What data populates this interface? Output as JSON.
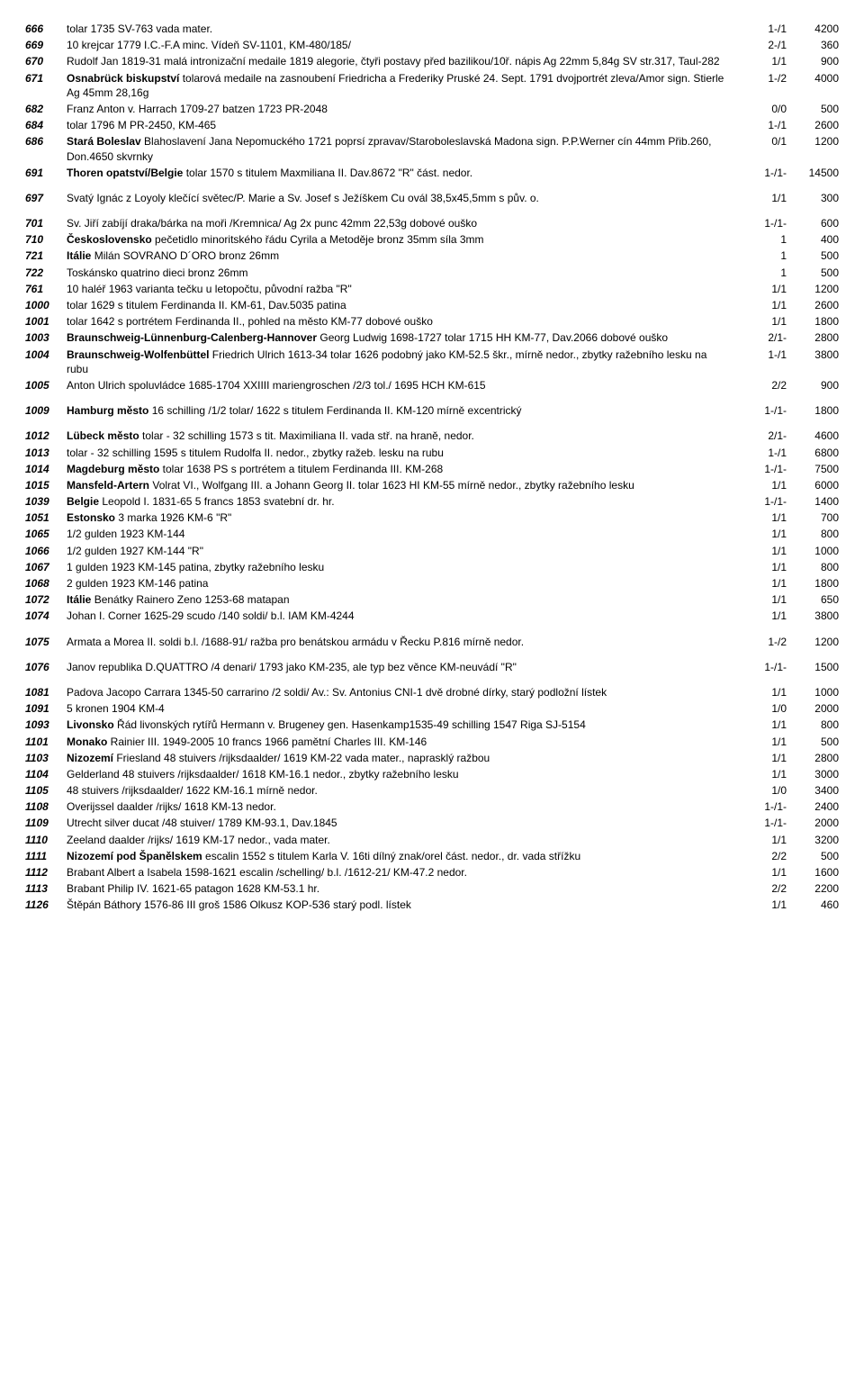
{
  "rows": [
    {
      "lot": "666",
      "desc": "tolar 1735  SV-763  vada mater.",
      "grade": "1-/1",
      "price": "4200"
    },
    {
      "lot": "669",
      "desc": "10 krejcar 1779 I.C.-F.A minc.  Vídeň  SV-1101, KM-480/185/",
      "grade": "2-/1",
      "price": "360"
    },
    {
      "lot": "670",
      "desc": "Rudolf Jan 1819-31 malá intronizační medaile 1819 alegorie, čtyři postavy před bazilikou/10ř. nápis  Ag 22mm  5,84g  SV str.317, Taul-282",
      "grade": "1/1",
      "price": "900"
    },
    {
      "lot": "671",
      "desc": "Osnabrück biskupství tolarová medaile na zasnoubení Friedricha a Frederiky Pruské 24. Sept. 1791 dvojportrét zleva/Amor  sign. Stierle  Ag 45mm  28,16g",
      "grade": "1-/2",
      "price": "4000",
      "bold": "Osnabrück biskupství"
    },
    {
      "lot": "682",
      "desc": "Franz Anton v. Harrach 1709-27  batzen 1723  PR-2048",
      "grade": "0/0",
      "price": "500"
    },
    {
      "lot": "684",
      "desc": "tolar 1796 M  PR-2450, KM-465",
      "grade": "1-/1",
      "price": "2600"
    },
    {
      "lot": "686",
      "desc": "Stará Boleslav Blahoslavení Jana Nepomuckého 1721 poprsí zpravav/Staroboleslavská Madona  sign. P.P.Werner  cín 44mm  Přib.260, Don.4650  skvrnky",
      "grade": "0/1",
      "price": "1200",
      "bold": "Stará Boleslav"
    },
    {
      "lot": "691",
      "desc": "Thoren opatství/Belgie tolar 1570 s titulem Maxmiliana II.  Dav.8672  \"R\"  část. nedor.",
      "grade": "1-/1-",
      "price": "14500",
      "bold": "Thoren opatství/Belgie"
    },
    {
      "gap": true
    },
    {
      "lot": "697",
      "desc": "Svatý Ignác z Loyoly  klečící světec/P. Marie a Sv. Josef s Ježíškem  Cu ovál 38,5x45,5mm s pův. o.",
      "grade": "1/1",
      "price": "300"
    },
    {
      "gap": true
    },
    {
      "lot": "701",
      "desc": "Sv. Jiří zabíjí draka/bárka na moři /Kremnica/  Ag 2x punc  42mm  22,53g  dobové ouško",
      "grade": "1-/1-",
      "price": "600"
    },
    {
      "lot": "710",
      "desc": "Československo pečetidlo minoritského řádu Cyrila a Metoděje  bronz 35mm síla 3mm",
      "grade": "1",
      "price": "400",
      "bold": "Československo"
    },
    {
      "lot": "721",
      "desc": "Itálie Milán SOVRANO D´ORO  bronz 26mm",
      "grade": "1",
      "price": "500",
      "bold": "Itálie"
    },
    {
      "lot": "722",
      "desc": "Toskánsko  quatrino dieci  bronz 26mm",
      "grade": "1",
      "price": "500"
    },
    {
      "lot": "761",
      "desc": "10 haléř 1963  varianta tečku u letopočtu, původní ražba  \"R\"",
      "grade": "1/1",
      "price": "1200"
    },
    {
      "lot": "1000",
      "desc": "tolar 1629 s titulem Ferdinanda II.  KM-61, Dav.5035  patina",
      "grade": "1/1",
      "price": "2600"
    },
    {
      "lot": "1001",
      "desc": "tolar 1642 s portrétem Ferdinanda II., pohled na město  KM-77  dobové ouško",
      "grade": "1/1",
      "price": "1800"
    },
    {
      "lot": "1003",
      "desc": "Braunschweig-Lünnenburg-Calenberg-Hannover Georg Ludwig 1698-1727 tolar 1715 HH  KM-77, Dav.2066  dobové ouško",
      "grade": "2/1-",
      "price": "2800",
      "bold": "Braunschweig-Lünnenburg-Calenberg-Hannover"
    },
    {
      "lot": "1004",
      "desc": "Braunschweig-Wolfenbüttel Friedrich Ulrich 1613-34  tolar 1626 podobný jako KM-52.5  škr., mírně nedor., zbytky ražebního lesku na rubu",
      "grade": "1-/1",
      "price": "3800",
      "bold": "Braunschweig-Wolfenbüttel"
    },
    {
      "lot": "1005",
      "desc": "Anton Ulrich spoluvládce 1685-1704  XXIIII mariengroschen /2/3 tol./ 1695  HCH  KM-615",
      "grade": "2/2",
      "price": "900"
    },
    {
      "gap": true
    },
    {
      "lot": "1009",
      "desc": "Hamburg město 16 schilling /1/2 tolar/ 1622 s titulem Ferdinanda II.  KM-120  mírně excentrický",
      "grade": "1-/1-",
      "price": "1800",
      "bold": "Hamburg město"
    },
    {
      "gap": true
    },
    {
      "lot": "1012",
      "desc": "Lübeck město tolar - 32 schilling 1573 s tit. Maximiliana II.  vada stř. na hraně, nedor.",
      "grade": "2/1-",
      "price": "4600",
      "bold": "Lübeck město"
    },
    {
      "lot": "1013",
      "desc": "tolar - 32 schilling 1595 s titulem Rudolfa II.  nedor., zbytky ražeb. lesku na rubu",
      "grade": "1-/1",
      "price": "6800"
    },
    {
      "lot": "1014",
      "desc": "Magdeburg město tolar 1638 PS s portrétem a titulem Ferdinanda III.  KM-268",
      "grade": "1-/1-",
      "price": "7500",
      "bold": "Magdeburg město"
    },
    {
      "lot": "1015",
      "desc": "Mansfeld-Artern Volrat VI., Wolfgang III. a Johann Georg II.  tolar 1623 HI  KM-55  mírně nedor., zbytky ražebního lesku",
      "grade": "1/1",
      "price": "6000",
      "bold": "Mansfeld-Artern"
    },
    {
      "lot": "1039",
      "desc": "Belgie Leopold I. 1831-65  5 francs 1853 svatební  dr. hr.",
      "grade": "1-/1-",
      "price": "1400",
      "bold": "Belgie"
    },
    {
      "lot": "1051",
      "desc": "Estonsko 3 marka 1926  KM-6  \"R\"",
      "grade": "1/1",
      "price": "700",
      "bold": "Estonsko"
    },
    {
      "lot": "1065",
      "desc": "1/2 gulden 1923  KM-144",
      "grade": "1/1",
      "price": "800"
    },
    {
      "lot": "1066",
      "desc": "1/2 gulden 1927  KM-144  \"R\"",
      "grade": "1/1",
      "price": "1000"
    },
    {
      "lot": "1067",
      "desc": "1 gulden 1923  KM-145  patina, zbytky ražebního lesku",
      "grade": "1/1",
      "price": "800"
    },
    {
      "lot": "1068",
      "desc": "2 gulden 1923  KM-146  patina",
      "grade": "1/1",
      "price": "1800"
    },
    {
      "lot": "1072",
      "desc": "Itálie Benátky Rainero Zeno 1253-68  matapan",
      "grade": "1/1",
      "price": "650",
      "bold": "Itálie"
    },
    {
      "lot": "1074",
      "desc": "Johan I. Corner 1625-29  scudo /140 soldi/ b.l.  IAM  KM-4244",
      "grade": "1/1",
      "price": "3800"
    },
    {
      "gap": true
    },
    {
      "lot": "1075",
      "desc": "Armata a Morea  II. soldi b.l. /1688-91/ ražba pro benátskou armádu v Řecku  P.816  mírně nedor.",
      "grade": "1-/2",
      "price": "1200"
    },
    {
      "gap": true
    },
    {
      "lot": "1076",
      "desc": "Janov republika  D.QUATTRO /4 denari/ 1793 jako KM-235, ale typ bez věnce  KM-neuvádí  \"R\"",
      "grade": "1-/1-",
      "price": "1500"
    },
    {
      "gap": true
    },
    {
      "lot": "1081",
      "desc": "Padova Jacopo Carrara 1345-50  carrarino /2 soldi/  Av.: Sv. Antonius  CNI-1  dvě drobné dírky, starý podložní lístek",
      "grade": "1/1",
      "price": "1000"
    },
    {
      "lot": "1091",
      "desc": "5 kronen 1904  KM-4",
      "grade": "1/0",
      "price": "2000"
    },
    {
      "lot": "1093",
      "desc": "Livonsko Řád livonských rytířů  Hermann v. Brugeney gen. Hasenkamp1535-49  schilling 1547  Riga  SJ-5154",
      "grade": "1/1",
      "price": "800",
      "bold": "Livonsko"
    },
    {
      "lot": "1101",
      "desc": "Monako Rainier III. 1949-2005  10 francs 1966 pamětní Charles III.     KM-146",
      "grade": "1/1",
      "price": "500",
      "bold": "Monako"
    },
    {
      "lot": "1103",
      "desc": "Nizozemí Friesland  48 stuivers /rijksdaalder/ 1619  KM-22  vada mater., naprasklý ražbou",
      "grade": "1/1",
      "price": "2800",
      "bold": "Nizozemí"
    },
    {
      "lot": "1104",
      "desc": "Gelderland  48 stuivers /rijksdaalder/ 1618  KM-16.1  nedor., zbytky ražebního lesku",
      "grade": "1/1",
      "price": "3000"
    },
    {
      "lot": "1105",
      "desc": "48 stuivers /rijksdaalder/ 1622  KM-16.1  mírně nedor.",
      "grade": "1/0",
      "price": "3400"
    },
    {
      "lot": "1108",
      "desc": "Overijssel  daalder /rijks/ 1618  KM-13  nedor.",
      "grade": "1-/1-",
      "price": "2400"
    },
    {
      "lot": "1109",
      "desc": "Utrecht  silver ducat /48 stuiver/ 1789  KM-93.1, Dav.1845",
      "grade": "1-/1-",
      "price": "2000"
    },
    {
      "lot": "1110",
      "desc": "Zeeland  daalder /rijks/ 1619  KM-17  nedor., vada mater.",
      "grade": "1/1",
      "price": "3200"
    },
    {
      "lot": "1111",
      "desc": "Nizozemí pod Španělskem escalin 1552 s titulem Karla V.  16ti dílný znak/orel  část. nedor., dr. vada střížku",
      "grade": "2/2",
      "price": "500",
      "bold": "Nizozemí pod Španělskem"
    },
    {
      "lot": "1112",
      "desc": "Brabant  Albert a Isabela 1598-1621  escalin /schelling/ b.l. /1612-21/  KM-47.2  nedor.",
      "grade": "1/1",
      "price": "1600"
    },
    {
      "lot": "1113",
      "desc": "Brabant Philip IV. 1621-65  patagon 1628  KM-53.1  hr.",
      "grade": "2/2",
      "price": "2200"
    },
    {
      "lot": "1126",
      "desc": "Štěpán Báthory 1576-86 III groš 1586 Olkusz  KOP-536  starý podl. lístek",
      "grade": "1/1",
      "price": "460"
    }
  ]
}
